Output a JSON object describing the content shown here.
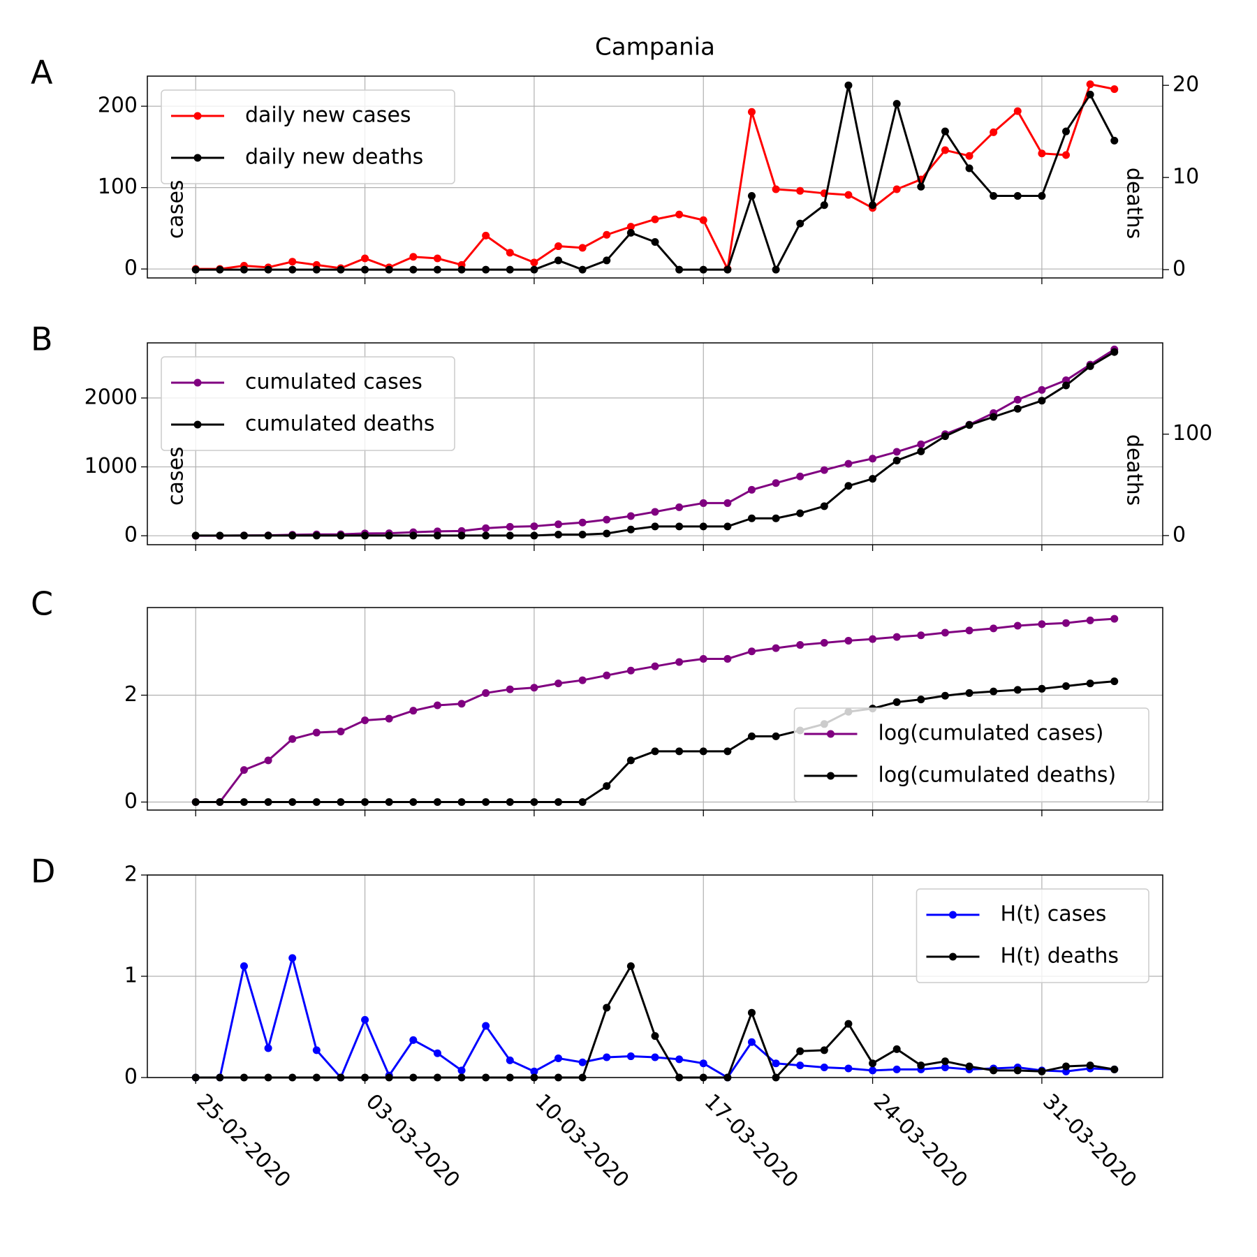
{
  "chart_data": [
    {
      "type": "line",
      "panel_label": "A",
      "title": "Campania",
      "ylabel": "cases",
      "y2label": "deaths",
      "legend": "upper left",
      "grid": true,
      "x": [
        "25-02-2020",
        "26-02-2020",
        "27-02-2020",
        "28-02-2020",
        "29-02-2020",
        "01-03-2020",
        "02-03-2020",
        "03-03-2020",
        "04-03-2020",
        "05-03-2020",
        "06-03-2020",
        "07-03-2020",
        "08-03-2020",
        "09-03-2020",
        "10-03-2020",
        "11-03-2020",
        "12-03-2020",
        "13-03-2020",
        "14-03-2020",
        "15-03-2020",
        "16-03-2020",
        "17-03-2020",
        "18-03-2020",
        "19-03-2020",
        "20-03-2020",
        "21-03-2020",
        "22-03-2020",
        "23-03-2020",
        "24-03-2020",
        "25-03-2020",
        "26-03-2020",
        "27-03-2020",
        "28-03-2020",
        "29-03-2020",
        "30-03-2020",
        "31-03-2020",
        "01-04-2020",
        "02-04-2020",
        "03-04-2020"
      ],
      "xlim": [
        "23-02-2020",
        "05-04-2020"
      ],
      "xticks": [
        "25-02-2020",
        "03-03-2020",
        "10-03-2020",
        "17-03-2020",
        "24-03-2020",
        "31-03-2020"
      ],
      "ylim": [
        -11,
        237
      ],
      "yticks": [
        0,
        100,
        200
      ],
      "y2lim": [
        -0.9,
        21
      ],
      "y2ticks": [
        0,
        10,
        20
      ],
      "series": [
        {
          "name": "daily new cases",
          "color": "#ff0000",
          "values": [
            0,
            0,
            4,
            2,
            9,
            5,
            1,
            13,
            2,
            15,
            13,
            5,
            41,
            20,
            8,
            28,
            26,
            42,
            52,
            61,
            67,
            60,
            0,
            193,
            98,
            96,
            93,
            91,
            75,
            98,
            110,
            146,
            139,
            168,
            194,
            142,
            140,
            227,
            221
          ]
        },
        {
          "name": "daily new deaths",
          "color": "#000000",
          "axis": "y2",
          "values": [
            0,
            0,
            0,
            0,
            0,
            0,
            0,
            0,
            0,
            0,
            0,
            0,
            0,
            0,
            0,
            1,
            0,
            1,
            4,
            3,
            0,
            0,
            0,
            8,
            0,
            5,
            7,
            20,
            7,
            18,
            9,
            15,
            11,
            8,
            8,
            8,
            15,
            19,
            14
          ]
        }
      ]
    },
    {
      "type": "line",
      "panel_label": "B",
      "ylabel": "cases",
      "y2label": "deaths",
      "legend": "upper left",
      "grid": true,
      "x": [
        "25-02-2020",
        "26-02-2020",
        "27-02-2020",
        "28-02-2020",
        "29-02-2020",
        "01-03-2020",
        "02-03-2020",
        "03-03-2020",
        "04-03-2020",
        "05-03-2020",
        "06-03-2020",
        "07-03-2020",
        "08-03-2020",
        "09-03-2020",
        "10-03-2020",
        "11-03-2020",
        "12-03-2020",
        "13-03-2020",
        "14-03-2020",
        "15-03-2020",
        "16-03-2020",
        "17-03-2020",
        "18-03-2020",
        "19-03-2020",
        "20-03-2020",
        "21-03-2020",
        "22-03-2020",
        "23-03-2020",
        "24-03-2020",
        "25-03-2020",
        "26-03-2020",
        "27-03-2020",
        "28-03-2020",
        "29-03-2020",
        "30-03-2020",
        "31-03-2020",
        "01-04-2020",
        "02-04-2020",
        "03-04-2020"
      ],
      "xlim": [
        "23-02-2020",
        "05-04-2020"
      ],
      "xticks": [
        "25-02-2020",
        "03-03-2020",
        "10-03-2020",
        "17-03-2020",
        "24-03-2020",
        "31-03-2020"
      ],
      "ylim": [
        -130,
        2800
      ],
      "yticks": [
        0,
        1000,
        2000
      ],
      "y2lim": [
        -9,
        190
      ],
      "y2ticks": [
        0,
        100
      ],
      "series": [
        {
          "name": "cumulated cases",
          "color": "#800080",
          "values": [
            0,
            0,
            4,
            6,
            15,
            20,
            21,
            34,
            36,
            51,
            64,
            69,
            110,
            130,
            138,
            166,
            192,
            234,
            286,
            347,
            414,
            474,
            474,
            667,
            765,
            861,
            954,
            1045,
            1120,
            1218,
            1328,
            1474,
            1613,
            1781,
            1975,
            2117,
            2257,
            2484,
            2705
          ]
        },
        {
          "name": "cumulated deaths",
          "color": "#000000",
          "axis": "y2",
          "values": [
            0,
            0,
            0,
            0,
            0,
            0,
            0,
            0,
            0,
            0,
            0,
            0,
            0,
            0,
            0,
            1,
            1,
            2,
            6,
            9,
            9,
            9,
            9,
            17,
            17,
            22,
            29,
            49,
            56,
            74,
            83,
            98,
            109,
            117,
            125,
            133,
            148,
            167,
            181
          ]
        }
      ]
    },
    {
      "type": "line",
      "panel_label": "C",
      "legend": "lower right",
      "grid": true,
      "x": [
        "25-02-2020",
        "26-02-2020",
        "27-02-2020",
        "28-02-2020",
        "29-02-2020",
        "01-03-2020",
        "02-03-2020",
        "03-03-2020",
        "04-03-2020",
        "05-03-2020",
        "06-03-2020",
        "07-03-2020",
        "08-03-2020",
        "09-03-2020",
        "10-03-2020",
        "11-03-2020",
        "12-03-2020",
        "13-03-2020",
        "14-03-2020",
        "15-03-2020",
        "16-03-2020",
        "17-03-2020",
        "18-03-2020",
        "19-03-2020",
        "20-03-2020",
        "21-03-2020",
        "22-03-2020",
        "23-03-2020",
        "24-03-2020",
        "25-03-2020",
        "26-03-2020",
        "27-03-2020",
        "28-03-2020",
        "29-03-2020",
        "30-03-2020",
        "31-03-2020",
        "01-04-2020",
        "02-04-2020",
        "03-04-2020"
      ],
      "xlim": [
        "23-02-2020",
        "05-04-2020"
      ],
      "xticks": [
        "25-02-2020",
        "03-03-2020",
        "10-03-2020",
        "17-03-2020",
        "24-03-2020",
        "31-03-2020"
      ],
      "ylim": [
        -0.15,
        3.64
      ],
      "yticks": [
        0,
        2
      ],
      "series": [
        {
          "name": "log(cumulated cases)",
          "color": "#800080",
          "values": [
            0,
            0,
            0.6,
            0.78,
            1.18,
            1.3,
            1.32,
            1.53,
            1.56,
            1.71,
            1.81,
            1.84,
            2.04,
            2.11,
            2.14,
            2.22,
            2.28,
            2.37,
            2.46,
            2.54,
            2.62,
            2.68,
            2.68,
            2.82,
            2.88,
            2.94,
            2.98,
            3.02,
            3.05,
            3.09,
            3.12,
            3.17,
            3.21,
            3.25,
            3.3,
            3.33,
            3.35,
            3.4,
            3.43
          ]
        },
        {
          "name": "log(cumulated deaths)",
          "color": "#000000",
          "values": [
            0,
            0,
            0,
            0,
            0,
            0,
            0,
            0,
            0,
            0,
            0,
            0,
            0,
            0,
            0,
            0,
            0,
            0.3,
            0.78,
            0.95,
            0.95,
            0.95,
            0.95,
            1.23,
            1.23,
            1.34,
            1.46,
            1.69,
            1.75,
            1.87,
            1.92,
            1.99,
            2.04,
            2.07,
            2.1,
            2.12,
            2.17,
            2.22,
            2.26
          ]
        }
      ]
    },
    {
      "type": "line",
      "panel_label": "D",
      "legend": "upper right",
      "grid": true,
      "x": [
        "25-02-2020",
        "26-02-2020",
        "27-02-2020",
        "28-02-2020",
        "29-02-2020",
        "01-03-2020",
        "02-03-2020",
        "03-03-2020",
        "04-03-2020",
        "05-03-2020",
        "06-03-2020",
        "07-03-2020",
        "08-03-2020",
        "09-03-2020",
        "10-03-2020",
        "11-03-2020",
        "12-03-2020",
        "13-03-2020",
        "14-03-2020",
        "15-03-2020",
        "16-03-2020",
        "17-03-2020",
        "18-03-2020",
        "19-03-2020",
        "20-03-2020",
        "21-03-2020",
        "22-03-2020",
        "23-03-2020",
        "24-03-2020",
        "25-03-2020",
        "26-03-2020",
        "27-03-2020",
        "28-03-2020",
        "29-03-2020",
        "30-03-2020",
        "31-03-2020",
        "01-04-2020",
        "02-04-2020",
        "03-04-2020"
      ],
      "xlim": [
        "23-02-2020",
        "05-04-2020"
      ],
      "xticks": [
        "25-02-2020",
        "03-03-2020",
        "10-03-2020",
        "17-03-2020",
        "24-03-2020",
        "31-03-2020"
      ],
      "ylim": [
        0,
        2
      ],
      "yticks": [
        0,
        1,
        2
      ],
      "series": [
        {
          "name": "H(t) cases",
          "color": "#0000ff",
          "values": [
            0,
            0,
            1.1,
            0.29,
            1.18,
            0.27,
            0,
            0.57,
            0.02,
            0.37,
            0.24,
            0.07,
            0.51,
            0.17,
            0.06,
            0.19,
            0.15,
            0.2,
            0.21,
            0.2,
            0.18,
            0.14,
            0,
            0.35,
            0.14,
            0.12,
            0.1,
            0.09,
            0.07,
            0.08,
            0.08,
            0.1,
            0.08,
            0.09,
            0.1,
            0.07,
            0.06,
            0.09,
            0.08
          ]
        },
        {
          "name": "H(t) deaths",
          "color": "#000000",
          "values": [
            0,
            0,
            0,
            0,
            0,
            0,
            0,
            0,
            0,
            0,
            0,
            0,
            0,
            0,
            0,
            0,
            0,
            0.69,
            1.1,
            0.41,
            0,
            0,
            0,
            0.64,
            0,
            0.26,
            0.27,
            0.53,
            0.14,
            0.28,
            0.12,
            0.16,
            0.11,
            0.07,
            0.07,
            0.06,
            0.11,
            0.12,
            0.08
          ]
        }
      ]
    }
  ]
}
